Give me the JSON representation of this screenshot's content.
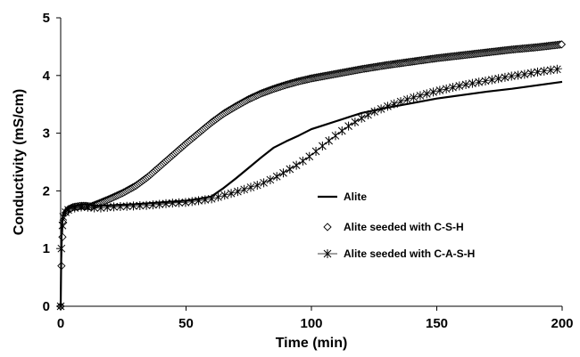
{
  "chart_data": {
    "type": "line",
    "title": "",
    "xlabel": "Time (min)",
    "ylabel": "Conductivity (mS/cm)",
    "xlim": [
      0,
      200
    ],
    "ylim": [
      0,
      5
    ],
    "x_ticks": [
      0,
      50,
      100,
      150,
      200
    ],
    "y_ticks": [
      0,
      1,
      2,
      3,
      4,
      5
    ],
    "grid": false,
    "legend_position": "center-right",
    "series": [
      {
        "name": "Alite",
        "marker": "none",
        "color": "#000000",
        "x": [
          0,
          0.3,
          0.7,
          1,
          2,
          3,
          5,
          8,
          10,
          12,
          15,
          20,
          30,
          40,
          50,
          55,
          60,
          65,
          70,
          75,
          80,
          85,
          90,
          95,
          100,
          105,
          110,
          115,
          120,
          130,
          140,
          150,
          160,
          170,
          180,
          190,
          200
        ],
        "y": [
          0,
          1.2,
          1.5,
          1.6,
          1.67,
          1.7,
          1.73,
          1.76,
          1.77,
          1.75,
          1.74,
          1.75,
          1.77,
          1.8,
          1.83,
          1.86,
          1.9,
          2.05,
          2.22,
          2.4,
          2.58,
          2.75,
          2.86,
          2.96,
          3.07,
          3.14,
          3.21,
          3.28,
          3.35,
          3.44,
          3.52,
          3.6,
          3.66,
          3.72,
          3.77,
          3.83,
          3.89
        ]
      },
      {
        "name": "Alite seeded with C-S-H",
        "marker": "diamond",
        "color": "#000000",
        "x": [
          0,
          0.3,
          0.7,
          1,
          2,
          3,
          5,
          8,
          10,
          12,
          15,
          20,
          25,
          30,
          35,
          40,
          45,
          50,
          55,
          60,
          65,
          70,
          75,
          80,
          85,
          90,
          95,
          100,
          105,
          110,
          115,
          120,
          130,
          140,
          150,
          160,
          170,
          180,
          190,
          200
        ],
        "y": [
          0,
          0.7,
          1.2,
          1.45,
          1.62,
          1.68,
          1.72,
          1.74,
          1.74,
          1.73,
          1.78,
          1.87,
          1.97,
          2.09,
          2.25,
          2.44,
          2.63,
          2.82,
          3.0,
          3.18,
          3.34,
          3.47,
          3.59,
          3.69,
          3.77,
          3.84,
          3.9,
          3.95,
          3.99,
          4.03,
          4.07,
          4.11,
          4.18,
          4.24,
          4.3,
          4.35,
          4.4,
          4.45,
          4.49,
          4.54
        ]
      },
      {
        "name": "Alite seeded with C-A-S-H",
        "marker": "asterisk",
        "color": "#000000",
        "x": [
          0,
          0.3,
          0.7,
          1,
          2,
          3,
          5,
          8,
          10,
          12,
          15,
          20,
          25,
          30,
          35,
          40,
          45,
          50,
          55,
          60,
          65,
          70,
          75,
          80,
          85,
          90,
          95,
          100,
          105,
          110,
          115,
          120,
          125,
          130,
          135,
          140,
          145,
          150,
          155,
          160,
          165,
          170,
          175,
          180,
          185,
          190,
          195,
          200
        ],
        "y": [
          0,
          1.0,
          1.4,
          1.55,
          1.63,
          1.67,
          1.7,
          1.72,
          1.72,
          1.71,
          1.7,
          1.72,
          1.73,
          1.74,
          1.75,
          1.77,
          1.79,
          1.8,
          1.83,
          1.86,
          1.92,
          1.98,
          2.05,
          2.12,
          2.22,
          2.34,
          2.47,
          2.62,
          2.8,
          2.97,
          3.13,
          3.26,
          3.37,
          3.46,
          3.54,
          3.61,
          3.67,
          3.73,
          3.78,
          3.83,
          3.87,
          3.91,
          3.95,
          3.99,
          4.02,
          4.06,
          4.09,
          4.12
        ]
      }
    ]
  }
}
